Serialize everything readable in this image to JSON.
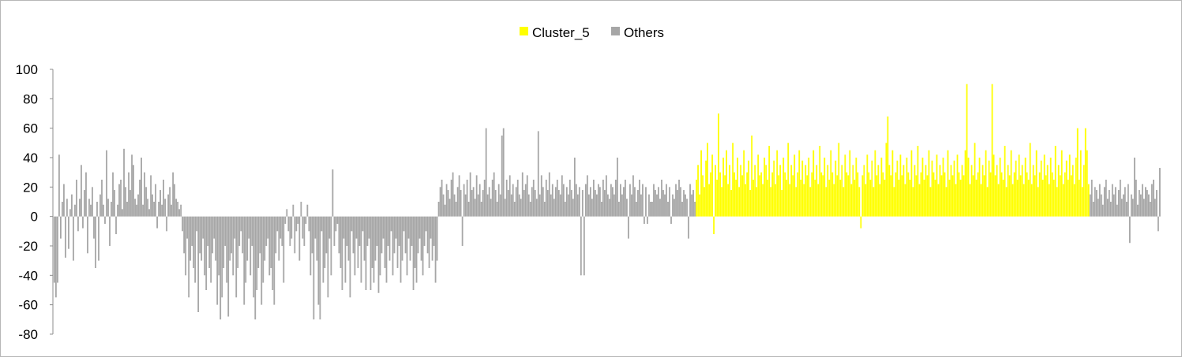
{
  "chart_data": {
    "type": "bar",
    "title": "",
    "xlabel": "",
    "ylabel": "",
    "ylim": [
      -80,
      100
    ],
    "yticks": [
      "100",
      "80",
      "60",
      "40",
      "20",
      "0",
      "-20",
      "-40",
      "-60",
      "-80"
    ],
    "legend_position": "top-center",
    "gridlines": false,
    "series": [
      {
        "name": "Cluster_5",
        "color": "#ffff00"
      },
      {
        "name": "Others",
        "color": "#a6a6a6"
      }
    ],
    "n_points": 700,
    "segments": [
      {
        "series": "Others",
        "start": 0,
        "end": 81,
        "values": [
          -45,
          -60,
          -20,
          42,
          -15,
          10,
          22,
          -28,
          12,
          -22,
          5,
          15,
          -18,
          8,
          25,
          -10,
          12,
          35,
          -8,
          18,
          30,
          -25,
          12,
          8,
          20,
          -15,
          5,
          10,
          -30,
          15,
          25,
          8,
          -5,
          45,
          12,
          -20,
          10,
          30,
          18,
          -12,
          8,
          22,
          25,
          5,
          -8,
          20,
          10,
          30,
          18,
          42,
          5,
          12,
          8,
          15,
          25,
          10,
          8,
          30,
          20,
          12,
          5,
          28,
          15,
          10,
          22,
          -8,
          10,
          18,
          8,
          25,
          12,
          -10,
          15,
          20,
          8,
          30,
          22,
          12,
          10,
          5,
          8
        ]
      },
      {
        "series": "Others",
        "start": 81,
        "end": 243,
        "values": [
          -10,
          -25,
          -40,
          -15,
          -55,
          -30,
          -20,
          -35,
          -45,
          -10,
          -65,
          -25,
          -30,
          -15,
          -40,
          -50,
          -20,
          -35,
          -45,
          -25,
          -15,
          -30,
          -60,
          -40,
          -70,
          -55,
          -35,
          -20,
          -45,
          -68,
          -30,
          -25,
          -40,
          -15,
          -55,
          -35,
          -20,
          -10,
          -25,
          -60,
          -45,
          -30,
          -15,
          -40,
          -20,
          -55,
          -70,
          -50,
          -35,
          -25,
          -60,
          -45,
          -30,
          -20,
          -15,
          -40,
          -35,
          -50,
          -60,
          -25,
          -10,
          -30,
          -15,
          -20,
          -45,
          -5,
          5,
          -10,
          -20,
          -15,
          8,
          -25,
          -10,
          -5,
          -30,
          10,
          -15,
          -20,
          -5,
          8,
          -10,
          -40,
          -25,
          -50,
          -15,
          -30,
          -60,
          -20,
          -10,
          -45,
          -35,
          -25,
          -55,
          -15,
          -40,
          -30,
          -20,
          -10,
          -5,
          -25,
          -35,
          -50,
          -15,
          -45,
          -20,
          -30,
          -55,
          -10,
          -25,
          -40,
          -15,
          -35,
          -20,
          -45,
          -10,
          -30,
          -50,
          -20,
          -15,
          -25,
          -35,
          -45,
          -30,
          -20,
          -52,
          -40,
          -25,
          -15,
          -35,
          -45,
          -20,
          -30,
          -10,
          -40,
          -25,
          -15,
          -35,
          -20,
          -45,
          -30,
          -10,
          -25,
          -40,
          -15,
          -30,
          -20,
          -50,
          -35,
          -45,
          -25,
          -15,
          -30,
          -40,
          -20,
          -10,
          -25,
          -35,
          -15,
          -30,
          -20,
          -45,
          -30
        ]
      },
      {
        "series": "Others",
        "start": 243,
        "end": 406,
        "values": [
          10,
          20,
          25,
          15,
          8,
          22,
          18,
          12,
          25,
          30,
          15,
          10,
          20,
          28,
          18,
          12,
          22,
          15,
          25,
          10,
          30,
          18,
          20,
          12,
          28,
          15,
          22,
          10,
          18,
          25,
          60,
          15,
          20,
          12,
          25,
          30,
          18,
          10,
          22,
          15,
          55,
          20,
          12,
          25,
          18,
          28,
          15,
          22,
          10,
          20,
          25,
          15,
          12,
          30,
          18,
          22,
          28,
          15,
          10,
          20,
          25,
          18,
          12,
          22,
          15,
          28,
          20,
          10,
          25,
          18,
          30,
          15,
          22,
          12,
          20,
          25,
          18,
          15,
          28,
          22,
          10,
          20,
          15,
          25,
          18,
          12,
          30,
          22,
          15,
          20,
          25,
          18,
          10,
          22,
          28,
          15,
          20,
          12,
          25,
          18,
          15,
          22,
          20,
          10,
          25,
          18,
          28,
          15,
          12,
          22,
          20,
          15,
          25,
          18,
          10,
          22,
          15,
          20,
          25,
          12,
          18,
          22,
          15,
          28,
          20,
          10,
          18,
          25,
          15,
          22,
          12,
          20,
          18,
          15,
          25,
          10,
          22,
          18,
          15,
          20,
          12,
          25,
          18,
          15,
          22,
          10,
          20,
          18,
          15,
          12,
          22,
          18,
          15,
          20,
          10,
          18,
          15,
          12,
          20,
          22,
          15,
          18,
          10
        ]
      },
      {
        "series": "Cluster_5",
        "start": 406,
        "end": 655,
        "values": [
          25,
          35,
          15,
          45,
          28,
          20,
          38,
          50,
          22,
          30,
          42,
          18,
          35,
          25,
          70,
          30,
          20,
          40,
          28,
          45,
          22,
          35,
          18,
          50,
          30,
          25,
          40,
          20,
          35,
          28,
          45,
          22,
          30,
          38,
          18,
          55,
          25,
          35,
          20,
          42,
          28,
          30,
          22,
          40,
          35,
          25,
          48,
          20,
          30,
          38,
          22,
          45,
          28,
          35,
          18,
          40,
          30,
          25,
          50,
          22,
          35,
          28,
          42,
          20,
          30,
          45,
          25,
          38,
          22,
          35,
          28,
          40,
          20,
          30,
          45,
          25,
          35,
          22,
          48,
          30,
          28,
          40,
          20,
          35,
          25,
          45,
          30,
          22,
          38,
          28,
          50,
          25,
          35,
          20,
          42,
          30,
          28,
          45,
          22,
          35,
          25,
          40,
          30,
          20,
          48,
          28,
          35,
          22,
          42,
          30,
          25,
          38,
          20,
          45,
          28,
          35,
          22,
          40,
          30,
          25,
          50,
          22,
          35,
          28,
          45,
          20,
          30,
          38,
          25,
          42,
          28,
          35,
          22,
          40,
          30,
          25,
          45,
          20,
          35,
          28,
          48,
          22,
          30,
          40,
          25,
          35,
          28,
          45,
          20,
          38,
          30,
          25,
          42,
          22,
          35,
          28,
          40,
          30,
          20,
          45,
          25,
          35,
          28,
          38,
          22,
          42,
          30,
          25,
          35,
          28,
          45,
          90,
          40,
          22,
          35,
          28,
          50,
          25,
          30,
          40,
          22,
          35,
          28,
          45,
          20,
          38,
          30,
          25,
          42,
          28,
          35,
          22,
          40,
          30,
          25,
          48,
          20,
          35,
          28,
          45,
          22,
          30,
          38,
          25,
          42,
          28,
          35,
          22,
          40,
          30,
          25,
          50,
          22,
          35,
          28,
          45,
          20,
          30,
          38,
          25,
          42,
          28,
          35,
          22,
          40,
          30,
          25,
          48,
          20,
          35,
          28,
          45,
          22,
          30,
          38,
          25,
          42,
          28,
          35,
          22,
          40,
          30,
          25,
          45,
          20,
          35,
          60,
          45,
          22,
          30,
          38,
          25,
          42,
          28,
          35
        ]
      },
      {
        "series": "Others",
        "start": 655,
        "end": 700,
        "values": [
          15,
          25,
          10,
          20,
          18,
          12,
          22,
          15,
          8,
          20,
          25,
          12,
          18,
          10,
          22,
          15,
          20,
          8,
          18,
          25,
          12,
          15,
          20,
          10,
          22,
          18,
          15,
          12,
          20,
          25,
          8,
          18,
          15,
          22,
          12,
          20,
          18,
          15,
          10,
          22,
          25,
          12,
          18,
          15,
          20
        ]
      }
    ],
    "overrides": [
      [
        1,
        -55
      ],
      [
        2,
        -45
      ],
      [
        12,
        -30
      ],
      [
        26,
        -35
      ],
      [
        200,
        -50
      ],
      [
        164,
        -70
      ],
      [
        168,
        -70
      ],
      [
        258,
        -20
      ],
      [
        284,
        60
      ],
      [
        306,
        58
      ],
      [
        329,
        40
      ],
      [
        333,
        -40
      ],
      [
        335,
        -40
      ],
      [
        356,
        40
      ],
      [
        363,
        -15
      ],
      [
        373,
        -5
      ],
      [
        375,
        -5
      ],
      [
        377,
        10
      ],
      [
        390,
        -5
      ],
      [
        395,
        25
      ],
      [
        401,
        -15
      ],
      [
        417,
        -12
      ],
      [
        510,
        -8
      ],
      [
        527,
        68
      ],
      [
        593,
        90
      ],
      [
        647,
        60
      ],
      [
        680,
        -18
      ],
      [
        683,
        40
      ],
      [
        698,
        -10
      ],
      [
        699,
        33
      ],
      [
        44,
        46
      ],
      [
        176,
        32
      ],
      [
        50,
        35
      ],
      [
        55,
        40
      ]
    ]
  }
}
